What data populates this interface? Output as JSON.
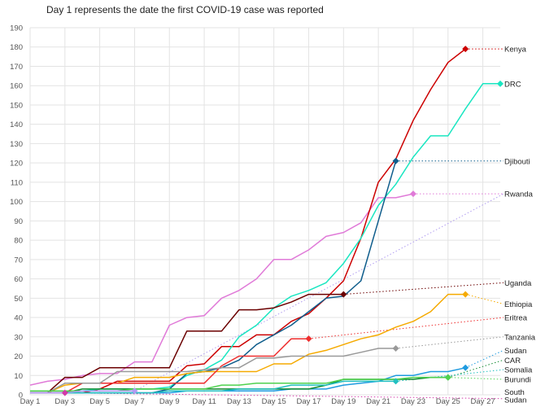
{
  "chart_data": {
    "type": "line",
    "title": "Day 1 represents the date the first COVID-19 case was reported",
    "xlabel": "",
    "ylabel": "",
    "xlim": [
      1,
      28
    ],
    "ylim": [
      0,
      190
    ],
    "y_ticks": [
      0,
      10,
      20,
      30,
      40,
      50,
      60,
      70,
      80,
      90,
      100,
      110,
      120,
      130,
      140,
      150,
      160,
      170,
      180,
      190
    ],
    "x_ticks": [
      {
        "value": 1,
        "label": "Day 1"
      },
      {
        "value": 3,
        "label": "Day 3"
      },
      {
        "value": 5,
        "label": "Day 5"
      },
      {
        "value": 7,
        "label": "Day 7"
      },
      {
        "value": 9,
        "label": "Day 9"
      },
      {
        "value": 11,
        "label": "Day 11"
      },
      {
        "value": 13,
        "label": "Day 13"
      },
      {
        "value": 15,
        "label": "Day 15"
      },
      {
        "value": 17,
        "label": "Day 17"
      },
      {
        "value": 19,
        "label": "Day 19"
      },
      {
        "value": 21,
        "label": "Day 21"
      },
      {
        "value": 23,
        "label": "Day 23"
      },
      {
        "value": 25,
        "label": "Day 25"
      },
      {
        "value": 27,
        "label": "Day 27"
      }
    ],
    "grid": true,
    "series": [
      {
        "name": "",
        "color": "#e07ad8",
        "x": [
          1,
          2,
          3,
          4,
          5,
          6,
          7,
          8,
          9,
          10,
          11,
          12,
          13,
          14,
          15,
          16,
          17,
          18,
          19,
          20,
          21,
          22,
          23
        ],
        "y": [
          5,
          7,
          8,
          10,
          11,
          11,
          17,
          17,
          36,
          40,
          41,
          50,
          54,
          60,
          70,
          70,
          75,
          82,
          84,
          89,
          102,
          102,
          104
        ],
        "marker": true,
        "leader_end": 28,
        "leader_y": 104
      },
      {
        "name": "Kenya",
        "color": "#cc0000",
        "x": [
          1,
          2,
          3,
          4,
          5,
          6,
          7,
          8,
          9,
          10,
          11,
          12,
          13,
          14,
          15,
          16,
          17,
          18,
          19,
          20,
          21,
          22,
          23,
          24,
          25,
          26
        ],
        "y": [
          1,
          1,
          1,
          1,
          3,
          7,
          7,
          7,
          7,
          15,
          16,
          25,
          25,
          31,
          31,
          38,
          42,
          50,
          59,
          81,
          110,
          122,
          142,
          158,
          172,
          179
        ],
        "marker": true,
        "leader_end": 28,
        "leader_y": 179
      },
      {
        "name": "DRC",
        "color": "#19e6c1",
        "x": [
          1,
          2,
          3,
          4,
          5,
          6,
          7,
          8,
          9,
          10,
          11,
          12,
          13,
          14,
          15,
          16,
          17,
          18,
          19,
          20,
          21,
          22,
          23,
          24,
          25,
          26,
          27,
          28
        ],
        "y": [
          2,
          2,
          2,
          2,
          3,
          3,
          3,
          3,
          4,
          10,
          13,
          18,
          30,
          36,
          45,
          51,
          54,
          58,
          68,
          81,
          98,
          109,
          123,
          134,
          134,
          148,
          161,
          161
        ],
        "marker": true,
        "leader_end": 28,
        "leader_y": 161
      },
      {
        "name": "Djibouti",
        "color": "#0f5d8c",
        "x": [
          1,
          2,
          3,
          4,
          5,
          6,
          7,
          8,
          9,
          10,
          11,
          12,
          13,
          14,
          15,
          16,
          17,
          18,
          19,
          20,
          21,
          22
        ],
        "y": [
          1,
          1,
          1,
          1,
          1,
          1,
          1,
          1,
          3,
          11,
          12,
          14,
          18,
          26,
          31,
          36,
          43,
          50,
          51,
          59,
          90,
          121
        ],
        "marker": true,
        "leader_end": 28,
        "leader_y": 121
      },
      {
        "name": "Uganda",
        "color": "#6b0000",
        "x": [
          1,
          2,
          3,
          4,
          5,
          6,
          7,
          8,
          9,
          10,
          11,
          12,
          13,
          14,
          15,
          16,
          17,
          18,
          19
        ],
        "y": [
          1,
          1,
          9,
          9,
          14,
          14,
          14,
          14,
          14,
          33,
          33,
          33,
          44,
          44,
          45,
          48,
          52,
          52,
          52
        ],
        "marker": true,
        "leader_end": 28,
        "leader_y": 58
      },
      {
        "name": "Ethiopia",
        "color": "#f5aa00",
        "x": [
          1,
          2,
          3,
          4,
          5,
          6,
          7,
          8,
          9,
          10,
          11,
          12,
          13,
          14,
          15,
          16,
          17,
          18,
          19,
          20,
          21,
          22,
          23,
          24,
          25,
          26
        ],
        "y": [
          1,
          1,
          5,
          6,
          6,
          6,
          9,
          9,
          9,
          11,
          12,
          12,
          12,
          12,
          16,
          16,
          21,
          23,
          26,
          29,
          31,
          35,
          38,
          43,
          52,
          52
        ],
        "marker": true,
        "leader_end": 28,
        "leader_y": 47
      },
      {
        "name": "Eritrea",
        "color": "#ee2e2e",
        "x": [
          1,
          2,
          3,
          4,
          5,
          6,
          7,
          8,
          9,
          10,
          11,
          12,
          13,
          14,
          15,
          16,
          17
        ],
        "y": [
          1,
          1,
          1,
          6,
          6,
          6,
          6,
          6,
          6,
          6,
          6,
          15,
          20,
          20,
          20,
          29,
          29
        ],
        "marker": true,
        "leader_end": 28,
        "leader_y": 40
      },
      {
        "name": "Tanzania",
        "color": "#999999",
        "x": [
          1,
          2,
          3,
          4,
          5,
          6,
          7,
          8,
          9,
          10,
          11,
          12,
          13,
          14,
          15,
          16,
          17,
          18,
          19,
          20,
          21,
          22
        ],
        "y": [
          1,
          1,
          6,
          6,
          6,
          12,
          12,
          12,
          12,
          12,
          13,
          14,
          14,
          19,
          19,
          20,
          20,
          20,
          20,
          22,
          24,
          24
        ],
        "marker": true,
        "leader_end": 28,
        "leader_y": 30
      },
      {
        "name": "Sudan",
        "color": "#1e9be0",
        "x": [
          1,
          2,
          3,
          4,
          5,
          6,
          7,
          8,
          9,
          10,
          11,
          12,
          13,
          14,
          15,
          16,
          17,
          18,
          19,
          20,
          21,
          22,
          23,
          24,
          25,
          26
        ],
        "y": [
          1,
          1,
          1,
          1,
          1,
          1,
          1,
          1,
          1,
          2,
          2,
          2,
          2,
          2,
          2,
          3,
          3,
          3,
          5,
          6,
          7,
          10,
          10,
          12,
          12,
          14
        ],
        "marker": true,
        "leader_end": 28,
        "leader_y": 23
      },
      {
        "name": "CAR",
        "color": "#108a30",
        "x": [
          1,
          2,
          3,
          4,
          5,
          6,
          7,
          8,
          9,
          10,
          11,
          12,
          13,
          14,
          15,
          16,
          17,
          18,
          19,
          20,
          21,
          22,
          23,
          24,
          25
        ],
        "y": [
          1,
          1,
          1,
          3,
          3,
          3,
          3,
          3,
          3,
          3,
          3,
          3,
          3,
          3,
          3,
          3,
          3,
          5,
          8,
          8,
          8,
          8,
          8,
          9,
          9
        ],
        "marker": true,
        "leader_end": 28,
        "leader_y": 18
      },
      {
        "name": "Somalia",
        "color": "#22c0c0",
        "x": [
          1,
          2,
          3,
          4,
          5,
          6,
          7,
          8,
          9,
          10,
          11,
          12,
          13,
          14,
          15,
          16,
          17,
          18,
          19,
          20,
          21,
          22
        ],
        "y": [
          1,
          1,
          1,
          1,
          1,
          1,
          1,
          1,
          2,
          2,
          2,
          2,
          3,
          3,
          3,
          5,
          5,
          5,
          7,
          7,
          7,
          7
        ],
        "marker": true,
        "leader_end": 28,
        "leader_y": 13
      },
      {
        "name": "Burundi",
        "color": "#4fd24f",
        "x": [
          1,
          2,
          3,
          4,
          5,
          6,
          7,
          8,
          9,
          10,
          11,
          12,
          13,
          14,
          15,
          16,
          17,
          18,
          19,
          20,
          21,
          22,
          23,
          24,
          25
        ],
        "y": [
          2,
          2,
          2,
          2,
          2,
          2,
          3,
          3,
          3,
          3,
          3,
          5,
          5,
          6,
          6,
          6,
          6,
          6,
          8,
          8,
          8,
          8,
          9,
          9,
          9
        ],
        "marker": true,
        "leader_end": 28,
        "leader_y": 8
      },
      {
        "name": "South Sudan",
        "color": "#d23aa8",
        "x": [
          1,
          2,
          3
        ],
        "y": [
          1,
          1,
          1
        ],
        "marker": true,
        "leader_end": 28,
        "leader_y": -2
      },
      {
        "name": "Rwanda",
        "color": "#b09cf0",
        "x": [
          1,
          2,
          3,
          4,
          5,
          6,
          7
        ],
        "y": [
          1,
          1,
          1,
          2,
          2,
          2,
          2
        ],
        "marker": true,
        "leader_end": 28,
        "leader_y": 104
      }
    ],
    "end_labels": [
      {
        "text": "Kenya",
        "y": 179
      },
      {
        "text": "DRC",
        "y": 161
      },
      {
        "text": "Djibouti",
        "y": 121
      },
      {
        "text": "Rwanda",
        "y": 104
      },
      {
        "text": "Uganda",
        "y": 58
      },
      {
        "text": "Ethiopia",
        "y": 47
      },
      {
        "text": "Eritrea",
        "y": 40
      },
      {
        "text": "Tanzania",
        "y": 30
      },
      {
        "text": "Sudan",
        "y": 23
      },
      {
        "text": "CAR",
        "y": 18
      },
      {
        "text": "Somalia",
        "y": 13
      },
      {
        "text": "Burundi",
        "y": 8
      },
      {
        "text": "South",
        "y": 1.5
      },
      {
        "text": "Sudan",
        "y": -2.5
      }
    ]
  }
}
